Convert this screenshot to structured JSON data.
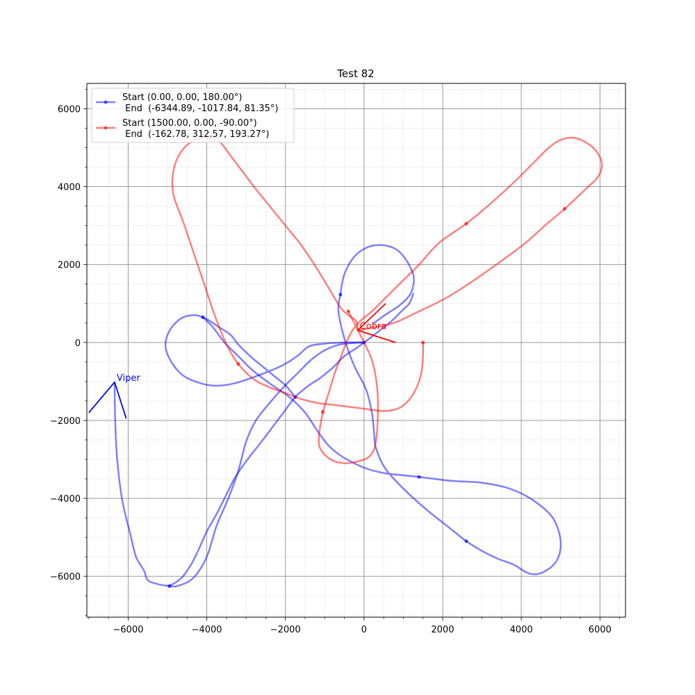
{
  "chart_data": {
    "type": "line",
    "title": "Test 82",
    "xlabel": "",
    "ylabel": "",
    "xlim": [
      -7050,
      6650
    ],
    "ylim": [
      -7050,
      6650
    ],
    "x_ticks": [
      -6000,
      -4000,
      -2000,
      0,
      2000,
      4000,
      6000
    ],
    "y_ticks": [
      -6000,
      -4000,
      -2000,
      0,
      2000,
      4000,
      6000
    ],
    "x_tick_labels": [
      "−6000",
      "−4000",
      "−2000",
      "0",
      "2000",
      "4000",
      "6000"
    ],
    "y_tick_labels": [
      "−6000",
      "−4000",
      "−2000",
      "0",
      "2000",
      "4000",
      "6000"
    ],
    "grid": true,
    "legend_position": "upper-left",
    "series": [
      {
        "name": "Start (0.00, 0.00, 180.00°)\n End  (-6344.89, -1017.84, 81.35°)",
        "legend_line1": "Start (0.00, 0.00, 180.00°)",
        "legend_line2": " End  (-6344.89, -1017.84, 81.35°)",
        "color": "#0000ff",
        "points": [
          [
            0,
            0
          ],
          [
            -300,
            -15
          ],
          [
            -650,
            -60
          ],
          [
            -1000,
            -200
          ],
          [
            -1350,
            -450
          ],
          [
            -1700,
            -800
          ],
          [
            -2050,
            -1150
          ],
          [
            -2400,
            -1550
          ],
          [
            -2750,
            -2000
          ],
          [
            -3000,
            -2550
          ],
          [
            -3200,
            -3300
          ],
          [
            -3450,
            -4000
          ],
          [
            -3750,
            -4700
          ],
          [
            -4000,
            -5500
          ],
          [
            -4350,
            -6050
          ],
          [
            -4750,
            -6250
          ],
          [
            -4950,
            -6250
          ],
          [
            -5250,
            -6200
          ],
          [
            -5500,
            -6100
          ],
          [
            -5600,
            -5850
          ],
          [
            -5800,
            -5500
          ],
          [
            -5950,
            -4900
          ],
          [
            -6150,
            -4050
          ],
          [
            -6280,
            -3000
          ],
          [
            -6330,
            -2000
          ],
          [
            -6345,
            -1018
          ]
        ],
        "events": [
          [
            0,
            0
          ],
          [
            -4950,
            -6250
          ]
        ],
        "other_trails": [
          [
            [
              1250,
              1250
            ],
            [
              1150,
              1000
            ],
            [
              950,
              800
            ],
            [
              700,
              550
            ],
            [
              450,
              350
            ],
            [
              200,
              150
            ],
            [
              0,
              0
            ],
            [
              -200,
              -150
            ],
            [
              -500,
              -350
            ],
            [
              -800,
              -650
            ],
            [
              -1100,
              -900
            ],
            [
              -1400,
              -1100
            ],
            [
              -1750,
              -1400
            ],
            [
              -2050,
              -1800
            ],
            [
              -2350,
              -2200
            ],
            [
              -2650,
              -2600
            ],
            [
              -3000,
              -3050
            ],
            [
              -3300,
              -3500
            ],
            [
              -3500,
              -3900
            ],
            [
              -3750,
              -4400
            ],
            [
              -4000,
              -4850
            ],
            [
              -4200,
              -5300
            ],
            [
              -4400,
              -5700
            ],
            [
              -4650,
              -6050
            ],
            [
              -4950,
              -6250
            ]
          ],
          [
            [
              -1750,
              -1400
            ],
            [
              -2000,
              -1100
            ],
            [
              -2300,
              -850
            ],
            [
              -2600,
              -600
            ],
            [
              -2900,
              -350
            ],
            [
              -3200,
              -50
            ],
            [
              -3400,
              200
            ],
            [
              -3700,
              400
            ],
            [
              -4000,
              600
            ],
            [
              -4300,
              700
            ],
            [
              -4650,
              620
            ],
            [
              -4950,
              300
            ],
            [
              -5050,
              -100
            ],
            [
              -4900,
              -500
            ],
            [
              -4600,
              -850
            ],
            [
              -4150,
              -1050
            ],
            [
              -3750,
              -1110
            ],
            [
              -3300,
              -1050
            ],
            [
              -2700,
              -850
            ],
            [
              -2100,
              -600
            ],
            [
              -1700,
              -350
            ],
            [
              -1400,
              -100
            ],
            [
              -1000,
              -30
            ],
            [
              -500,
              0
            ],
            [
              0,
              0
            ]
          ],
          [
            [
              -4100,
              650
            ],
            [
              -3850,
              400
            ],
            [
              -3550,
              0
            ],
            [
              -3200,
              -350
            ],
            [
              -2850,
              -700
            ],
            [
              -2400,
              -1050
            ],
            [
              -1900,
              -1400
            ],
            [
              -1500,
              -1800
            ],
            [
              -1200,
              -2250
            ],
            [
              -900,
              -2650
            ],
            [
              -600,
              -2900
            ],
            [
              -250,
              -3100
            ],
            [
              100,
              -3250
            ],
            [
              500,
              -3350
            ],
            [
              900,
              -3400
            ],
            [
              1400,
              -3450
            ],
            [
              2200,
              -3550
            ],
            [
              3000,
              -3600
            ],
            [
              3700,
              -3750
            ],
            [
              4300,
              -4050
            ],
            [
              4800,
              -4500
            ],
            [
              5000,
              -5100
            ],
            [
              4900,
              -5600
            ],
            [
              4550,
              -5900
            ],
            [
              4200,
              -5930
            ],
            [
              3800,
              -5700
            ],
            [
              3400,
              -5550
            ],
            [
              3000,
              -5350
            ],
            [
              2600,
              -5100
            ],
            [
              2100,
              -4700
            ],
            [
              1600,
              -4300
            ],
            [
              1050,
              -3800
            ],
            [
              550,
              -3250
            ],
            [
              300,
              -2700
            ],
            [
              250,
              -2250
            ],
            [
              200,
              -1800
            ],
            [
              50,
              -1200
            ],
            [
              -250,
              -600
            ],
            [
              -500,
              100
            ],
            [
              -650,
              800
            ],
            [
              -600,
              1250
            ],
            [
              -500,
              1750
            ],
            [
              -250,
              2200
            ],
            [
              100,
              2450
            ],
            [
              450,
              2500
            ],
            [
              800,
              2400
            ],
            [
              1050,
              2150
            ],
            [
              1250,
              1750
            ],
            [
              1250,
              1450
            ],
            [
              1150,
              1200
            ],
            [
              900,
              950
            ],
            [
              600,
              750
            ],
            [
              250,
              500
            ]
          ]
        ],
        "markers": [
          [
            -600,
            1230
          ],
          [
            -4100,
            650
          ],
          [
            -1750,
            -1400
          ],
          [
            1400,
            -3450
          ],
          [
            2600,
            -5100
          ]
        ]
      },
      {
        "name": "Start (1500.00, 0.00, -90.00°)\n End  (-162.78, 312.57, 193.27°)",
        "legend_line1": "Start (1500.00, 0.00, -90.00°)",
        "legend_line2": " End  (-162.78, 312.57, 193.27°)",
        "color": "#ff0000",
        "points": [
          [
            1500,
            0
          ],
          [
            1500,
            -300
          ],
          [
            1470,
            -700
          ],
          [
            1380,
            -1050
          ],
          [
            1200,
            -1400
          ],
          [
            950,
            -1650
          ],
          [
            650,
            -1750
          ],
          [
            350,
            -1750
          ],
          [
            0,
            -1700
          ],
          [
            -400,
            -1650
          ],
          [
            -800,
            -1600
          ],
          [
            -1200,
            -1550
          ],
          [
            -1600,
            -1450
          ],
          [
            -2000,
            -1300
          ],
          [
            -2400,
            -1150
          ],
          [
            -2800,
            -950
          ],
          [
            -3200,
            -550
          ],
          [
            -3500,
            -50
          ],
          [
            -3800,
            700
          ],
          [
            -4000,
            1300
          ],
          [
            -4200,
            1900
          ],
          [
            -4400,
            2500
          ],
          [
            -4600,
            3100
          ],
          [
            -4850,
            3800
          ],
          [
            -4850,
            4400
          ],
          [
            -4650,
            4900
          ],
          [
            -4300,
            5200
          ],
          [
            -3850,
            5250
          ],
          [
            -3700,
            5200
          ],
          [
            -3400,
            4800
          ],
          [
            -3100,
            4400
          ],
          [
            -2800,
            4000
          ],
          [
            -2400,
            3500
          ],
          [
            -2000,
            3000
          ],
          [
            -1600,
            2500
          ],
          [
            -1200,
            1900
          ],
          [
            -900,
            1400
          ],
          [
            -600,
            900
          ],
          [
            -400,
            700
          ],
          [
            -200,
            550
          ],
          [
            -163,
            313
          ]
        ],
        "events": [
          [
            1500,
            0
          ],
          [
            -1050,
            -1780
          ],
          [
            -3200,
            -550
          ],
          [
            -400,
            800
          ]
        ],
        "other_trails": [
          [
            [
              -400,
              800
            ],
            [
              -250,
              500
            ],
            [
              -100,
              200
            ],
            [
              50,
              -100
            ],
            [
              200,
              -450
            ],
            [
              300,
              -900
            ],
            [
              350,
              -1400
            ],
            [
              350,
              -1900
            ],
            [
              320,
              -2400
            ],
            [
              250,
              -2750
            ],
            [
              100,
              -2950
            ],
            [
              -150,
              -3050
            ],
            [
              -500,
              -3100
            ],
            [
              -850,
              -3000
            ],
            [
              -1100,
              -2750
            ],
            [
              -1150,
              -2450
            ],
            [
              -1050,
              -1800
            ],
            [
              -900,
              -1300
            ],
            [
              -750,
              -800
            ],
            [
              -600,
              -400
            ],
            [
              -450,
              0
            ],
            [
              -300,
              300
            ],
            [
              -100,
              550
            ],
            [
              200,
              800
            ],
            [
              500,
              1100
            ],
            [
              900,
              1500
            ],
            [
              1400,
              2000
            ],
            [
              1900,
              2550
            ],
            [
              2600,
              3050
            ],
            [
              3200,
              3550
            ],
            [
              3800,
              4100
            ],
            [
              4300,
              4600
            ],
            [
              4700,
              5000
            ],
            [
              5000,
              5200
            ],
            [
              5350,
              5250
            ],
            [
              5700,
              5100
            ],
            [
              5950,
              4850
            ],
            [
              6050,
              4550
            ],
            [
              5950,
              4250
            ],
            [
              5650,
              3950
            ],
            [
              5100,
              3430
            ],
            [
              4600,
              3000
            ],
            [
              4100,
              2550
            ],
            [
              3500,
              2100
            ],
            [
              2800,
              1600
            ],
            [
              2100,
              1150
            ],
            [
              1400,
              800
            ],
            [
              750,
              500
            ],
            [
              200,
              380
            ],
            [
              -163,
              313
            ]
          ]
        ],
        "markers": [
          [
            2600,
            3050
          ],
          [
            5100,
            3430
          ]
        ]
      }
    ],
    "annotations": [
      {
        "text": "Viper",
        "color": "#0000ff",
        "anchor": [
          -6344.89,
          -1017.84
        ],
        "arms": [
          [
            [
              -6344.89,
              -1017.84
            ],
            [
              -6050,
              -1950
            ]
          ],
          [
            [
              -6344.89,
              -1017.84
            ],
            [
              -7000,
              -1800
            ]
          ]
        ]
      },
      {
        "text": "Cobra",
        "color": "#ff0000",
        "anchor": [
          -162.78,
          312.57
        ],
        "arms": [
          [
            [
              -162.78,
              312.57
            ],
            [
              800,
              0
            ]
          ],
          [
            [
              -162.78,
              312.57
            ],
            [
              550,
              1000
            ]
          ]
        ]
      }
    ]
  }
}
